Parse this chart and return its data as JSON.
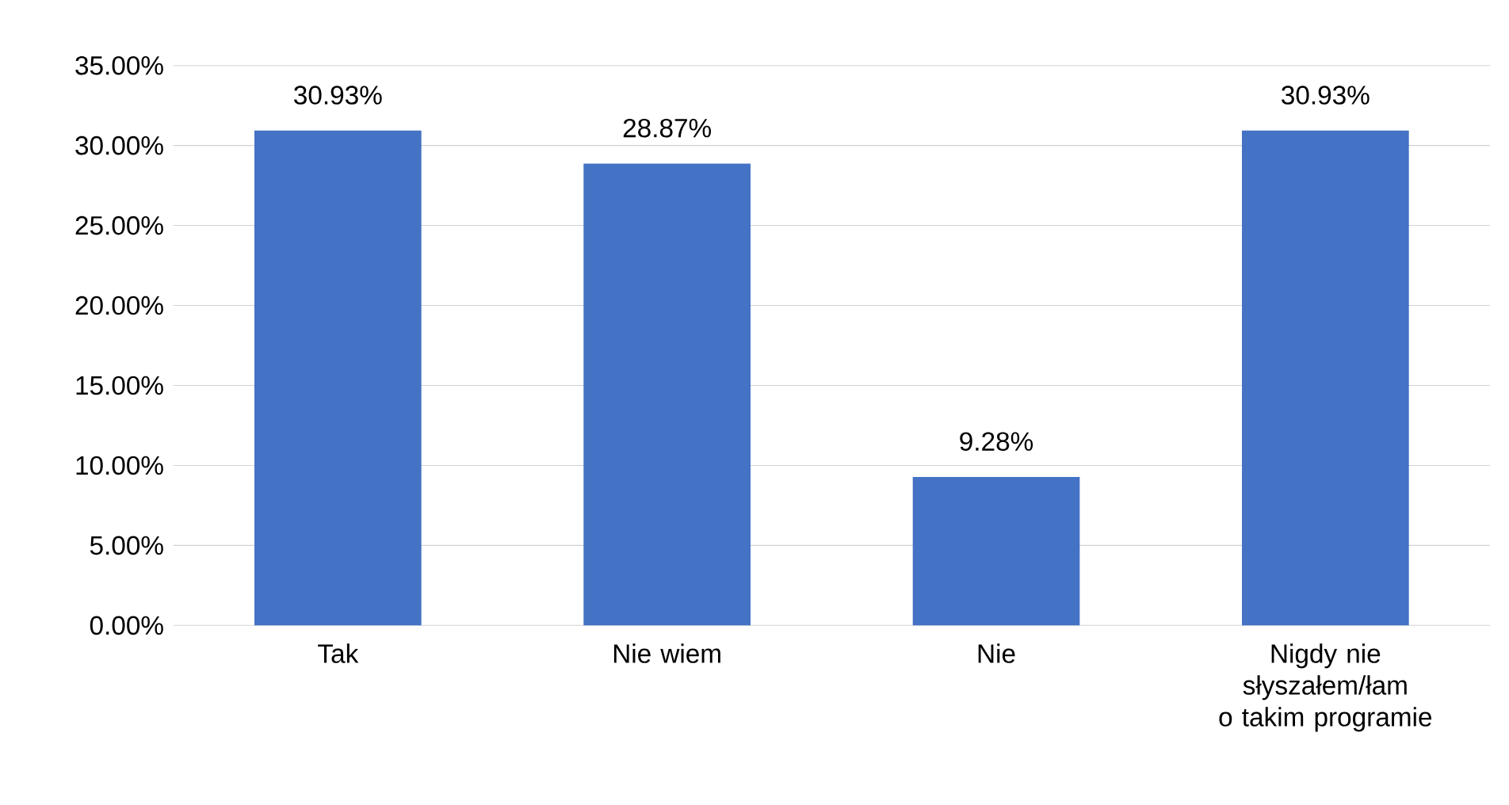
{
  "chart_data": {
    "type": "bar",
    "categories": [
      "Tak",
      "Nie wiem",
      "Nie",
      "Nigdy nie słyszałem/łam o takim programie"
    ],
    "values": [
      30.93,
      28.87,
      9.28,
      30.93
    ],
    "value_labels": [
      "30.93%",
      "28.87%",
      "9.28%",
      "30.93%"
    ],
    "color": "#4472c4",
    "ylim": [
      0,
      35
    ],
    "yticks": [
      {
        "value": 0,
        "label": "0.00%"
      },
      {
        "value": 5,
        "label": "5.00%"
      },
      {
        "value": 10,
        "label": "10.00%"
      },
      {
        "value": 15,
        "label": "15.00%"
      },
      {
        "value": 20,
        "label": "20.00%"
      },
      {
        "value": 25,
        "label": "25.00%"
      },
      {
        "value": 30,
        "label": "30.00%"
      },
      {
        "value": 35,
        "label": "35.00%"
      }
    ],
    "grid": "y"
  }
}
